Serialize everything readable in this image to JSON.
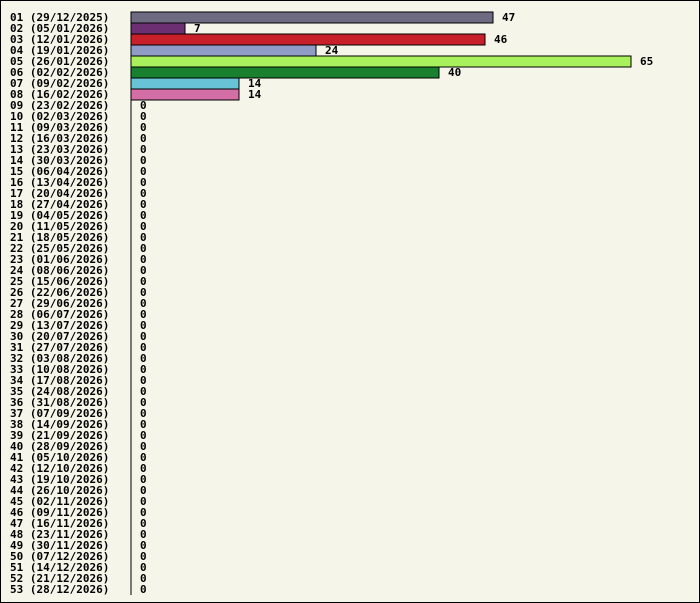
{
  "chart_data": {
    "type": "bar",
    "orientation": "horizontal",
    "title": "",
    "xlabel": "",
    "ylabel": "",
    "grid": false,
    "legend": "none",
    "categories": [
      "01 (29/12/2025)",
      "02 (05/01/2026)",
      "03 (12/01/2026)",
      "04 (19/01/2026)",
      "05 (26/01/2026)",
      "06 (02/02/2026)",
      "07 (09/02/2026)",
      "08 (16/02/2026)",
      "09 (23/02/2026)",
      "10 (02/03/2026)",
      "11 (09/03/2026)",
      "12 (16/03/2026)",
      "13 (23/03/2026)",
      "14 (30/03/2026)",
      "15 (06/04/2026)",
      "16 (13/04/2026)",
      "17 (20/04/2026)",
      "18 (27/04/2026)",
      "19 (04/05/2026)",
      "20 (11/05/2026)",
      "21 (18/05/2026)",
      "22 (25/05/2026)",
      "23 (01/06/2026)",
      "24 (08/06/2026)",
      "25 (15/06/2026)",
      "26 (22/06/2026)",
      "27 (29/06/2026)",
      "28 (06/07/2026)",
      "29 (13/07/2026)",
      "30 (20/07/2026)",
      "31 (27/07/2026)",
      "32 (03/08/2026)",
      "33 (10/08/2026)",
      "34 (17/08/2026)",
      "35 (24/08/2026)",
      "36 (31/08/2026)",
      "37 (07/09/2026)",
      "38 (14/09/2026)",
      "39 (21/09/2026)",
      "40 (28/09/2026)",
      "41 (05/10/2026)",
      "42 (12/10/2026)",
      "43 (19/10/2026)",
      "44 (26/10/2026)",
      "45 (02/11/2026)",
      "46 (09/11/2026)",
      "47 (16/11/2026)",
      "48 (23/11/2026)",
      "49 (30/11/2026)",
      "50 (07/12/2026)",
      "51 (14/12/2026)",
      "52 (21/12/2026)",
      "53 (28/12/2026)"
    ],
    "values": [
      47,
      7,
      46,
      24,
      65,
      40,
      14,
      14,
      0,
      0,
      0,
      0,
      0,
      0,
      0,
      0,
      0,
      0,
      0,
      0,
      0,
      0,
      0,
      0,
      0,
      0,
      0,
      0,
      0,
      0,
      0,
      0,
      0,
      0,
      0,
      0,
      0,
      0,
      0,
      0,
      0,
      0,
      0,
      0,
      0,
      0,
      0,
      0,
      0,
      0,
      0,
      0,
      0
    ],
    "bar_colors": [
      "#6e6a82",
      "#6c2f72",
      "#c8202a",
      "#8e9cc6",
      "#a8f05c",
      "#18802e",
      "#68c3d6",
      "#d46ea6"
    ],
    "xlim": [
      0,
      65
    ]
  }
}
